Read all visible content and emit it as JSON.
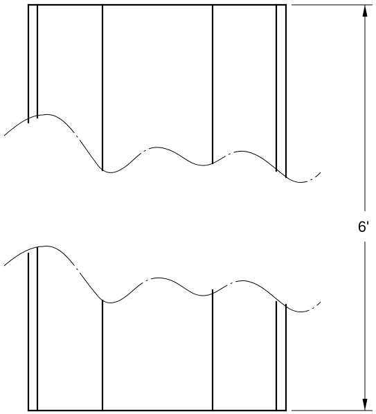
{
  "dimension": {
    "height_label": "6'"
  },
  "colors": {
    "line": "#000000",
    "background": "#ffffff"
  }
}
